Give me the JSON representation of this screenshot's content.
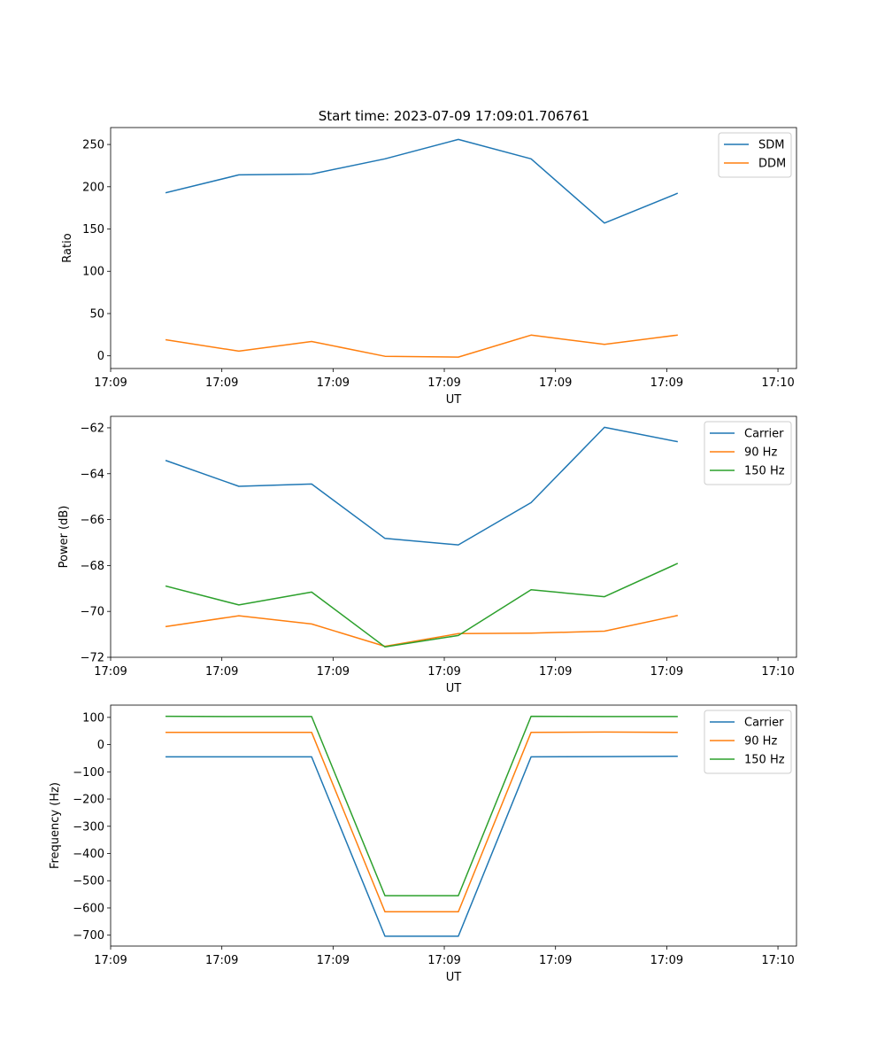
{
  "figure_title": "Start time: 2023-07-09 17:09:01.706761",
  "colors": {
    "blue": "#1f77b4",
    "orange": "#ff7f0e",
    "green": "#2ca02c",
    "text": "#000000"
  },
  "chart_data": [
    {
      "type": "line",
      "title": "Start time: 2023-07-09 17:09:01.706761",
      "xlabel": "UT",
      "ylabel": "Ratio",
      "xlim": [
        0,
        9.25
      ],
      "ylim": [
        -15,
        270
      ],
      "x_ticks": [
        {
          "v": 0,
          "label": "17:09"
        },
        {
          "v": 1.5,
          "label": "17:09"
        },
        {
          "v": 3,
          "label": "17:09"
        },
        {
          "v": 4.5,
          "label": "17:09"
        },
        {
          "v": 6,
          "label": "17:09"
        },
        {
          "v": 7.5,
          "label": "17:09"
        },
        {
          "v": 9,
          "label": "17:10"
        }
      ],
      "y_ticks": [
        {
          "v": 0,
          "label": "0"
        },
        {
          "v": 50,
          "label": "50"
        },
        {
          "v": 100,
          "label": "100"
        },
        {
          "v": 150,
          "label": "150"
        },
        {
          "v": 200,
          "label": "200"
        },
        {
          "v": 250,
          "label": "250"
        }
      ],
      "x": [
        0.75,
        1.73,
        2.71,
        3.7,
        4.69,
        5.67,
        6.66,
        7.64
      ],
      "series": [
        {
          "name": "SDM",
          "color": "#1f77b4",
          "values": [
            193,
            214,
            215,
            233,
            256,
            233,
            157,
            192
          ]
        },
        {
          "name": "DDM",
          "color": "#ff7f0e",
          "values": [
            19,
            5.5,
            17,
            -0.5,
            -1.5,
            24.5,
            13.5,
            24.5
          ]
        }
      ],
      "legend": "top-right"
    },
    {
      "type": "line",
      "xlabel": "UT",
      "ylabel": "Power (dB)",
      "xlim": [
        0,
        9.25
      ],
      "ylim": [
        -72,
        -61.5
      ],
      "x_ticks": [
        {
          "v": 0,
          "label": "17:09"
        },
        {
          "v": 1.5,
          "label": "17:09"
        },
        {
          "v": 3,
          "label": "17:09"
        },
        {
          "v": 4.5,
          "label": "17:09"
        },
        {
          "v": 6,
          "label": "17:09"
        },
        {
          "v": 7.5,
          "label": "17:09"
        },
        {
          "v": 9,
          "label": "17:10"
        }
      ],
      "y_ticks": [
        {
          "v": -72,
          "label": "−72"
        },
        {
          "v": -70,
          "label": "−70"
        },
        {
          "v": -68,
          "label": "−68"
        },
        {
          "v": -66,
          "label": "−66"
        },
        {
          "v": -64,
          "label": "−64"
        },
        {
          "v": -62,
          "label": "−62"
        }
      ],
      "x": [
        0.75,
        1.73,
        2.71,
        3.7,
        4.69,
        5.67,
        6.66,
        7.64
      ],
      "series": [
        {
          "name": "Carrier",
          "color": "#1f77b4",
          "values": [
            -63.43,
            -64.55,
            -64.45,
            -66.82,
            -67.1,
            -65.26,
            -61.98,
            -62.6
          ]
        },
        {
          "name": "90 Hz",
          "color": "#ff7f0e",
          "values": [
            -70.66,
            -70.19,
            -70.55,
            -71.52,
            -70.97,
            -70.95,
            -70.86,
            -70.18
          ]
        },
        {
          "name": "150 Hz",
          "color": "#2ca02c",
          "values": [
            -68.9,
            -69.72,
            -69.16,
            -71.55,
            -71.05,
            -69.06,
            -69.36,
            -67.92
          ]
        }
      ],
      "legend": "top-right"
    },
    {
      "type": "line",
      "xlabel": "UT",
      "ylabel": "Frequency (Hz)",
      "xlim": [
        0,
        9.25
      ],
      "ylim": [
        -740,
        145
      ],
      "x_ticks": [
        {
          "v": 0,
          "label": "17:09"
        },
        {
          "v": 1.5,
          "label": "17:09"
        },
        {
          "v": 3,
          "label": "17:09"
        },
        {
          "v": 4.5,
          "label": "17:09"
        },
        {
          "v": 6,
          "label": "17:09"
        },
        {
          "v": 7.5,
          "label": "17:09"
        },
        {
          "v": 9,
          "label": "17:10"
        }
      ],
      "y_ticks": [
        {
          "v": -700,
          "label": "−700"
        },
        {
          "v": -600,
          "label": "−600"
        },
        {
          "v": -500,
          "label": "−500"
        },
        {
          "v": -400,
          "label": "−400"
        },
        {
          "v": -300,
          "label": "−300"
        },
        {
          "v": -200,
          "label": "−200"
        },
        {
          "v": -100,
          "label": "−100"
        },
        {
          "v": 0,
          "label": "0"
        },
        {
          "v": 100,
          "label": "100"
        }
      ],
      "x": [
        0.75,
        1.73,
        2.71,
        3.7,
        4.69,
        5.67,
        6.66,
        7.64
      ],
      "series": [
        {
          "name": "Carrier",
          "color": "#1f77b4",
          "values": [
            -45,
            -45,
            -45,
            -704,
            -704,
            -45,
            -44,
            -43
          ]
        },
        {
          "name": "90 Hz",
          "color": "#ff7f0e",
          "values": [
            45,
            45,
            45,
            -614,
            -614,
            45,
            46,
            45
          ]
        },
        {
          "name": "150 Hz",
          "color": "#2ca02c",
          "values": [
            104,
            103,
            103,
            -555,
            -555,
            104,
            103,
            103
          ]
        }
      ],
      "legend": "top-right"
    }
  ]
}
